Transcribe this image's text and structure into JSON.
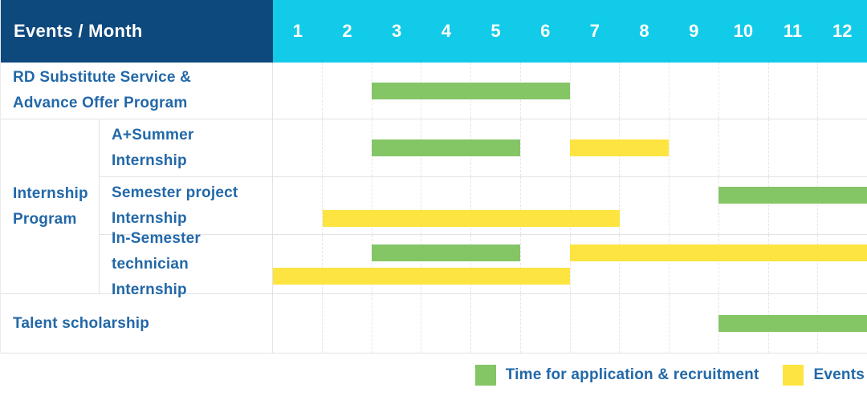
{
  "header": {
    "title": "Events / Month",
    "months": [
      "1",
      "2",
      "3",
      "4",
      "5",
      "6",
      "7",
      "8",
      "9",
      "10",
      "11",
      "12"
    ]
  },
  "labels": {
    "row_rd": "RD Substitute Service &\nAdvance Offer Program",
    "group_internship": "Internship\nProgram",
    "row_summer": "A+Summer\nInternship",
    "row_semester_project": "Semester project\nInternship",
    "row_in_semester": "In-Semester\ntechnician Internship",
    "row_talent": "Talent scholarship"
  },
  "legend": {
    "items": [
      {
        "label": "Time for application & recruitment",
        "color_key": "green"
      },
      {
        "label": "Events",
        "color_key": "yellow"
      }
    ]
  },
  "colors": {
    "navy": "#0E497E",
    "cyan": "#12CBE8",
    "green": "#84C566",
    "yellow": "#FDE440",
    "label_blue": "#2268A8"
  },
  "chart_data": {
    "type": "bar",
    "subtype": "gantt",
    "title": "Events / Month",
    "x_axis": {
      "label": "Month",
      "ticks": [
        1,
        2,
        3,
        4,
        5,
        6,
        7,
        8,
        9,
        10,
        11,
        12
      ],
      "range": [
        1,
        12
      ]
    },
    "series_legend": [
      "Time for application & recruitment",
      "Events"
    ],
    "rows": [
      {
        "group": null,
        "label": "RD Substitute Service & Advance Offer Program",
        "lines": 1,
        "bars": [
          {
            "series": "Time for application & recruitment",
            "color_key": "green",
            "start": 3,
            "end": 6,
            "line": 0
          }
        ]
      },
      {
        "group": "Internship Program",
        "label": "A+Summer Internship",
        "lines": 1,
        "bars": [
          {
            "series": "Time for application & recruitment",
            "color_key": "green",
            "start": 3,
            "end": 5,
            "line": 0
          },
          {
            "series": "Events",
            "color_key": "yellow",
            "start": 7,
            "end": 8,
            "line": 0
          }
        ]
      },
      {
        "group": "Internship Program",
        "label": "Semester project Internship",
        "lines": 2,
        "bars": [
          {
            "series": "Time for application & recruitment",
            "color_key": "green",
            "start": 10,
            "end": 12,
            "line": 0
          },
          {
            "series": "Events",
            "color_key": "yellow",
            "start": 2,
            "end": 7,
            "line": 1
          }
        ]
      },
      {
        "group": "Internship Program",
        "label": "In-Semester technician Internship",
        "lines": 2,
        "bars": [
          {
            "series": "Time for application & recruitment",
            "color_key": "green",
            "start": 3,
            "end": 5,
            "line": 0
          },
          {
            "series": "Events",
            "color_key": "yellow",
            "start": 7,
            "end": 12,
            "line": 0
          },
          {
            "series": "Events",
            "color_key": "yellow",
            "start": 1,
            "end": 6,
            "line": 1
          }
        ]
      },
      {
        "group": null,
        "label": "Talent scholarship",
        "lines": 1,
        "bars": [
          {
            "series": "Time for application & recruitment",
            "color_key": "green",
            "start": 10,
            "end": 12,
            "line": 0
          }
        ]
      }
    ]
  }
}
